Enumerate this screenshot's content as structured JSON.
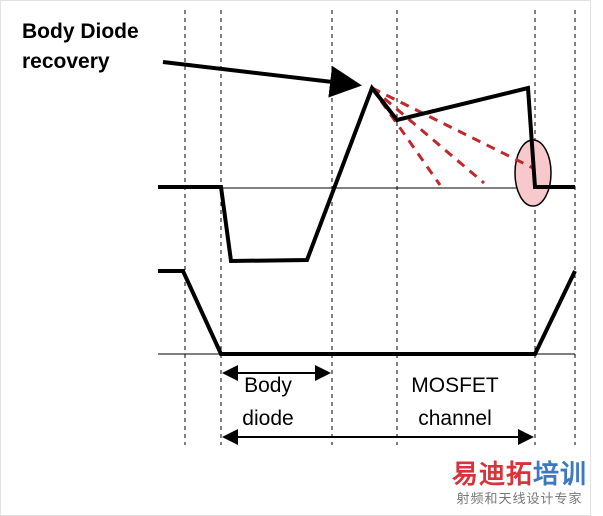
{
  "annotation": {
    "line1": "Body Diode",
    "line2": "recovery"
  },
  "labels": {
    "body_diode": {
      "line1": "Body",
      "line2": "diode"
    },
    "mosfet_channel": {
      "line1": "MOSFET",
      "line2": "channel"
    }
  },
  "watermark": {
    "part1": "易迪拓",
    "part2": "培训",
    "subtitle": "射频和天线设计专家"
  },
  "colors": {
    "waveform": "#000000",
    "recovery_dash": "#c0282d",
    "highlight_fill": "#f7c9cc",
    "watermark_red": "#d9333a",
    "watermark_blue": "#3a78c2"
  }
}
